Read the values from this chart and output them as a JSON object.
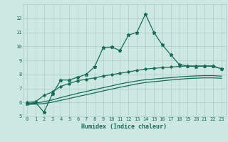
{
  "xlabel": "Humidex (Indice chaleur)",
  "ylabel": "",
  "xlim": [
    -0.5,
    23.5
  ],
  "ylim": [
    5,
    13
  ],
  "yticks": [
    5,
    6,
    7,
    8,
    9,
    10,
    11,
    12
  ],
  "xticks": [
    0,
    1,
    2,
    3,
    4,
    5,
    6,
    7,
    8,
    9,
    10,
    11,
    12,
    13,
    14,
    15,
    16,
    17,
    18,
    19,
    20,
    21,
    22,
    23
  ],
  "bg_color": "#cce8e0",
  "grid_color": "#aacccc",
  "line_color": "#1a6b5a",
  "line1_x": [
    0,
    1,
    2,
    3,
    4,
    5,
    6,
    7,
    8,
    9,
    10,
    11,
    12,
    13,
    14,
    15,
    16,
    17,
    18,
    19,
    20,
    21,
    22,
    23
  ],
  "line1_y": [
    5.9,
    6.0,
    5.3,
    6.6,
    7.6,
    7.6,
    7.8,
    8.0,
    8.55,
    9.9,
    9.95,
    9.7,
    10.8,
    11.0,
    12.3,
    11.0,
    10.1,
    9.4,
    8.7,
    8.6,
    8.55,
    8.6,
    8.6,
    8.4
  ],
  "line2_x": [
    0,
    1,
    2,
    3,
    4,
    5,
    6,
    7,
    8,
    9,
    10,
    11,
    12,
    13,
    14,
    15,
    16,
    17,
    18,
    19,
    20,
    21,
    22,
    23
  ],
  "line2_y": [
    6.0,
    6.05,
    6.5,
    6.75,
    7.15,
    7.35,
    7.55,
    7.65,
    7.75,
    7.88,
    7.98,
    8.08,
    8.18,
    8.28,
    8.38,
    8.43,
    8.48,
    8.52,
    8.57,
    8.6,
    8.6,
    8.6,
    8.57,
    8.4
  ],
  "line3_x": [
    0,
    1,
    2,
    3,
    4,
    5,
    6,
    7,
    8,
    9,
    10,
    11,
    12,
    13,
    14,
    15,
    16,
    17,
    18,
    19,
    20,
    21,
    22,
    23
  ],
  "line3_y": [
    5.9,
    5.95,
    6.05,
    6.18,
    6.35,
    6.5,
    6.65,
    6.78,
    6.92,
    7.05,
    7.18,
    7.32,
    7.43,
    7.53,
    7.62,
    7.67,
    7.72,
    7.77,
    7.82,
    7.86,
    7.89,
    7.91,
    7.91,
    7.87
  ],
  "line4_x": [
    0,
    1,
    2,
    3,
    4,
    5,
    6,
    7,
    8,
    9,
    10,
    11,
    12,
    13,
    14,
    15,
    16,
    17,
    18,
    19,
    20,
    21,
    22,
    23
  ],
  "line4_y": [
    5.85,
    5.88,
    5.92,
    6.02,
    6.15,
    6.28,
    6.42,
    6.55,
    6.68,
    6.82,
    6.95,
    7.08,
    7.2,
    7.32,
    7.42,
    7.48,
    7.54,
    7.6,
    7.65,
    7.7,
    7.73,
    7.75,
    7.75,
    7.72
  ]
}
